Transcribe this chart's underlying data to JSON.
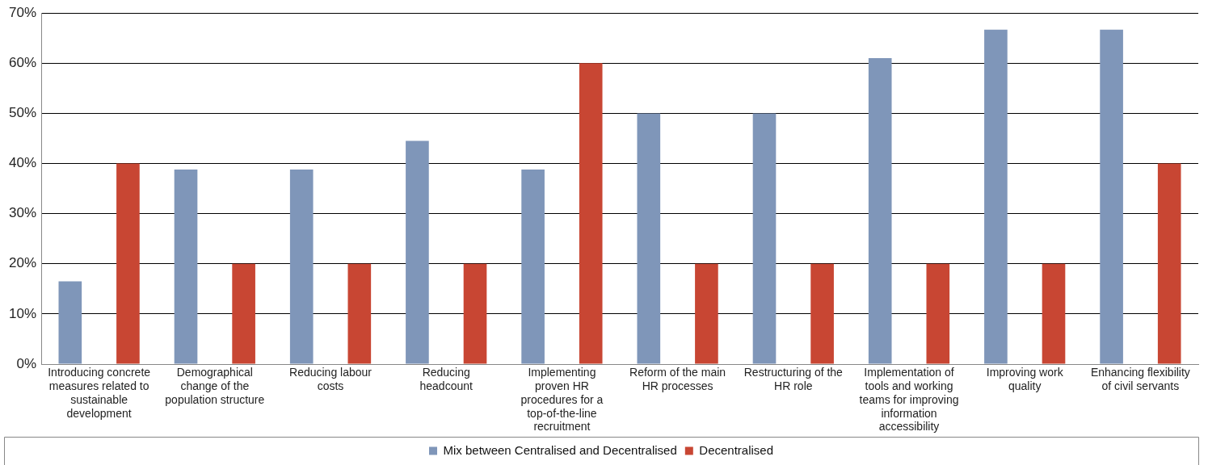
{
  "chart_data": {
    "type": "bar",
    "categories": [
      "Introducing concrete measures related to sustainable development",
      "Demographical change of the population structure",
      "Reducing labour costs",
      "Reducing headcount",
      "Implementing proven HR procedures for a top-of-the-line recruitment",
      "Reform of the main HR processes",
      "Restructuring of the HR role",
      "Implementation of tools and working teams for improving information accessibility",
      "Improving work quality",
      "Enhancing flexibility of civil servants"
    ],
    "series": [
      {
        "name": "Mix between Centralised and Decentralised",
        "color": "#7f96b9",
        "values": [
          16.5,
          38.8,
          38.8,
          44.5,
          38.8,
          50,
          50,
          61,
          66.7,
          66.7
        ]
      },
      {
        "name": "Decentralised",
        "color": "#c84633",
        "values": [
          40,
          20,
          20,
          20,
          60,
          20,
          20,
          20,
          20,
          40
        ]
      }
    ],
    "ylim": [
      0,
      70
    ],
    "yticks": [
      {
        "value": 0,
        "label": "0%"
      },
      {
        "value": 10,
        "label": "10%"
      },
      {
        "value": 20,
        "label": "20%"
      },
      {
        "value": 30,
        "label": "30%"
      },
      {
        "value": 40,
        "label": "40%"
      },
      {
        "value": 50,
        "label": "50%"
      },
      {
        "value": 60,
        "label": "60%"
      },
      {
        "value": 70,
        "label": "70%"
      }
    ],
    "grid": "y",
    "legend": "bottom"
  }
}
